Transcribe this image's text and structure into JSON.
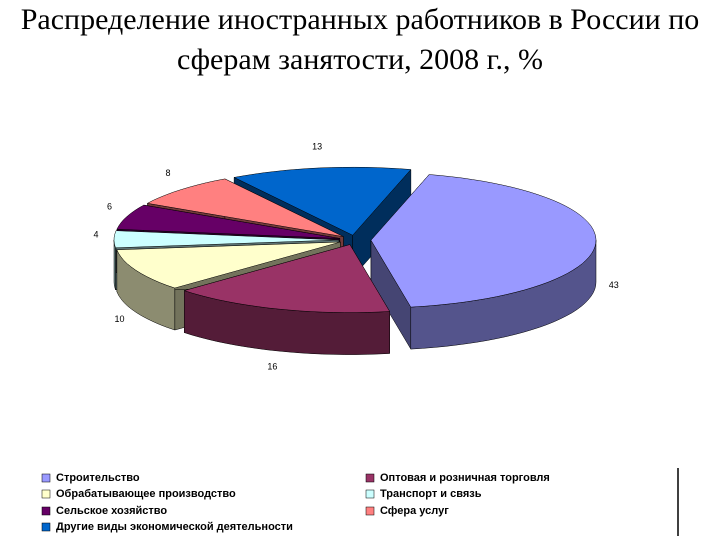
{
  "chart_data": {
    "type": "pie",
    "title": "Распределение иностранных работников в России по сферам занятости, 2008 г., %",
    "categories": [
      "Строительство",
      "Оптовая и розничная торговля",
      "Обрабатывающее производство",
      "Транспорт и связь",
      "Сельское хозяйство",
      "Сфера услуг",
      "Другие виды экономической деятельности"
    ],
    "values": [
      43,
      16,
      10,
      4,
      6,
      8,
      13
    ],
    "colors": [
      "#9999ff",
      "#993366",
      "#ffffcc",
      "#ccffff",
      "#660066",
      "#ff8080",
      "#0066cc"
    ]
  }
}
